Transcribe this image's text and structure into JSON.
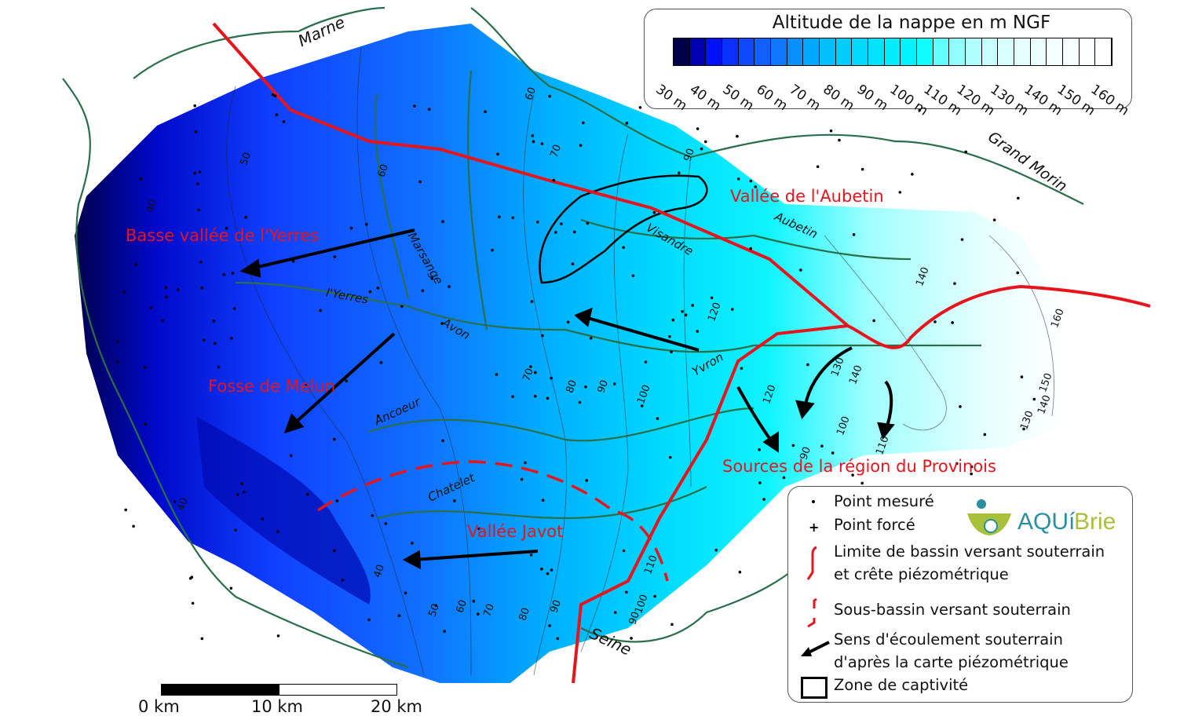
{
  "legend_scale": {
    "title": "Altitude de la nappe en m NGF",
    "ticks": [
      "30 m",
      "40 m",
      "50 m",
      "60 m",
      "70 m",
      "80 m",
      "90 m",
      "100 m",
      "110 m",
      "120 m",
      "130 m",
      "140 m",
      "150 m",
      "160 m"
    ],
    "colors": [
      "#00004a",
      "#0000b0",
      "#0010f8",
      "#0830ff",
      "#1048ff",
      "#1060ff",
      "#1078ff",
      "#0890ff",
      "#00a8ff",
      "#00c0ff",
      "#00ccff",
      "#00d8ff",
      "#00e4ff",
      "#00ecff",
      "#00f4ff",
      "#10fcff",
      "#60ffff",
      "#90ffff",
      "#b0ffff",
      "#c8ffff",
      "#d8ffff",
      "#e4ffff",
      "#ecffff",
      "#f4ffff",
      "#f8ffff",
      "#fcffff",
      "#ffffff"
    ]
  },
  "legend_symbols": {
    "items": [
      {
        "icon": "dot-icon",
        "label": "Point mesuré"
      },
      {
        "icon": "plus-icon",
        "label": "Point forcé"
      },
      {
        "icon": "red-solid-line-icon",
        "label": "Limite de bassin versant souterrain",
        "label2": "et crête piézométrique"
      },
      {
        "icon": "red-dashed-line-icon",
        "label": "Sous-bassin versant souterrain"
      },
      {
        "icon": "arrow-icon",
        "label": "Sens d'écoulement souterrain",
        "label2": "d'après la carte piézométrique"
      },
      {
        "icon": "square-icon",
        "label": "Zone de captivité"
      }
    ],
    "logo": "AQUíBrie"
  },
  "scale_bar": {
    "labels": [
      "0 km",
      "10 km",
      "20 km"
    ]
  },
  "zones": [
    "Vallée de l'Aubetin",
    "Basse vallée de l'Yerres",
    "Fosse de Melun",
    "Sources de la région du Provinois",
    "Vallée Javot"
  ],
  "rivers": [
    "Marne",
    "Grand Morin",
    "Aubetin",
    "Visandre",
    "Marsange",
    "l'Yerres",
    "Avon",
    "Yvron",
    "Ancoeur",
    "Chatelet",
    "Seine"
  ],
  "contour_labels": [
    "50",
    "60",
    "70",
    "90",
    "40",
    "60",
    "70",
    "80",
    "90",
    "100",
    "120",
    "140",
    "160",
    "150",
    "140",
    "130",
    "130",
    "140",
    "120",
    "100",
    "90",
    "110",
    "40",
    "40",
    "50",
    "60",
    "70",
    "80",
    "90",
    "110",
    "100",
    "90"
  ],
  "colors": {
    "boundary": "#e8141c",
    "river": "#2a6e4a",
    "arrow": "#000000"
  }
}
